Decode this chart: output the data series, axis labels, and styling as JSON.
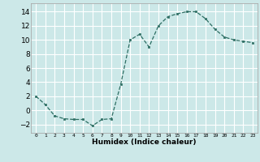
{
  "x": [
    0,
    1,
    2,
    3,
    4,
    5,
    6,
    7,
    8,
    9,
    10,
    11,
    12,
    13,
    14,
    15,
    16,
    17,
    18,
    19,
    20,
    21,
    22,
    23
  ],
  "y": [
    2.0,
    0.8,
    -0.8,
    -1.2,
    -1.3,
    -1.3,
    -2.2,
    -1.3,
    -1.2,
    3.7,
    10.0,
    10.8,
    9.0,
    12.0,
    13.3,
    13.7,
    14.0,
    14.0,
    13.0,
    11.5,
    10.4,
    10.0,
    9.8,
    9.6
  ],
  "xlabel": "Humidex (Indice chaleur)",
  "xlim": [
    -0.5,
    23.5
  ],
  "ylim": [
    -3.2,
    15.2
  ],
  "yticks": [
    -2,
    0,
    2,
    4,
    6,
    8,
    10,
    12,
    14
  ],
  "xtick_labels": [
    "0",
    "1",
    "2",
    "3",
    "4",
    "5",
    "6",
    "7",
    "8",
    "9",
    "10",
    "11",
    "12",
    "13",
    "14",
    "15",
    "16",
    "17",
    "18",
    "19",
    "20",
    "21",
    "22",
    "23"
  ],
  "line_color": "#2d6e63",
  "marker_color": "#2d6e63",
  "bg_color": "#cce8e8",
  "grid_color": "#ffffff",
  "fig_bg": "#cce8e8"
}
